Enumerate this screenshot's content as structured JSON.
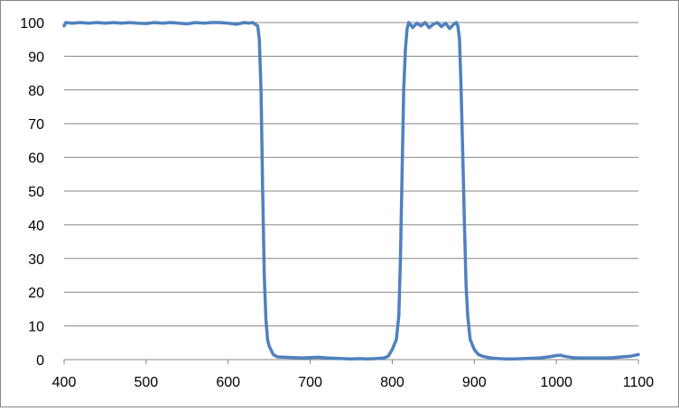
{
  "chart_data": {
    "type": "line",
    "title": "",
    "xlabel": "",
    "ylabel": "",
    "xlim": [
      400,
      1100
    ],
    "ylim": [
      0,
      100
    ],
    "x_ticks": [
      400,
      500,
      600,
      700,
      800,
      900,
      1000,
      1100
    ],
    "y_ticks": [
      0,
      10,
      20,
      30,
      40,
      50,
      60,
      70,
      80,
      90,
      100
    ],
    "grid": "horizontal",
    "legend": "none",
    "series": [
      {
        "color": "#4f81bd",
        "x": [
          400,
          402,
          410,
          420,
          430,
          440,
          450,
          460,
          470,
          480,
          490,
          500,
          510,
          520,
          530,
          540,
          550,
          560,
          570,
          580,
          590,
          600,
          610,
          620,
          625,
          630,
          633,
          636,
          638,
          640,
          642,
          644,
          646,
          648,
          650,
          655,
          660,
          670,
          680,
          690,
          700,
          710,
          720,
          730,
          740,
          750,
          760,
          770,
          780,
          790,
          795,
          800,
          805,
          808,
          810,
          812,
          814,
          816,
          818,
          820,
          822,
          825,
          830,
          835,
          840,
          845,
          850,
          855,
          860,
          865,
          870,
          875,
          878,
          880,
          882,
          884,
          886,
          888,
          890,
          892,
          895,
          900,
          905,
          910,
          920,
          930,
          940,
          950,
          960,
          970,
          980,
          990,
          1000,
          1005,
          1010,
          1020,
          1030,
          1040,
          1050,
          1060,
          1070,
          1080,
          1090,
          1100
        ],
        "y": [
          99,
          100,
          99.8,
          100,
          99.8,
          100,
          99.8,
          100,
          99.8,
          100,
          99.8,
          99.7,
          100,
          99.8,
          100,
          99.8,
          99.6,
          100,
          99.8,
          100,
          100,
          99.8,
          99.5,
          100,
          99.8,
          100,
          99.5,
          99,
          95,
          80,
          50,
          25,
          12,
          6,
          4,
          1.5,
          0.8,
          0.7,
          0.6,
          0.5,
          0.6,
          0.7,
          0.5,
          0.4,
          0.3,
          0.2,
          0.3,
          0.2,
          0.3,
          0.5,
          1,
          3,
          6,
          13,
          30,
          55,
          80,
          92,
          98,
          100,
          99.5,
          98.5,
          99.8,
          99,
          100,
          98.5,
          99.5,
          100,
          98.8,
          99.8,
          98.2,
          99.5,
          100,
          99,
          95,
          80,
          60,
          40,
          22,
          13,
          6,
          3,
          1.5,
          1,
          0.5,
          0.3,
          0.2,
          0.2,
          0.3,
          0.4,
          0.5,
          0.8,
          1.2,
          1.3,
          1,
          0.6,
          0.5,
          0.5,
          0.5,
          0.5,
          0.6,
          0.8,
          1,
          1.5
        ]
      }
    ]
  }
}
